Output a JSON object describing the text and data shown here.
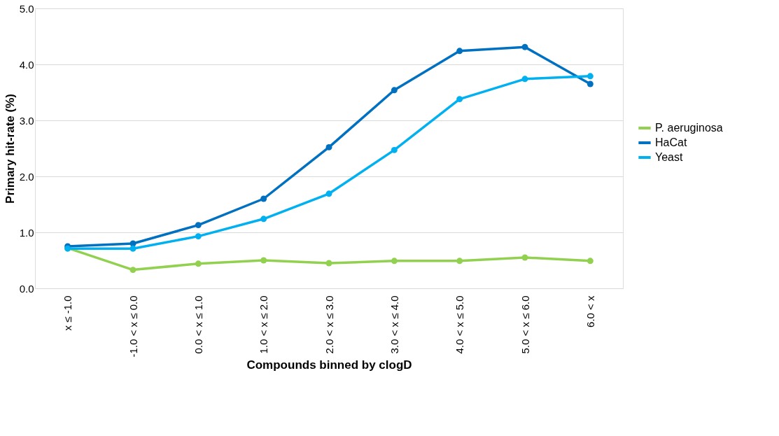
{
  "chart_data": {
    "type": "line",
    "xlabel": "Compounds binned by clogD",
    "ylabel": "Primary hit-rate (%)",
    "categories": [
      "x ≤ -1.0",
      "-1.0 < x ≤ 0.0",
      "0.0 < x ≤ 1.0",
      "1.0 < x ≤ 2.0",
      "2.0 < x ≤ 3.0",
      "3.0 < x ≤ 4.0",
      "4.0 < x ≤ 5.0",
      "5.0 < x ≤ 6.0",
      "6.0 < x"
    ],
    "series": [
      {
        "name": "P. aeruginosa",
        "color": "#92d050",
        "values": [
          0.72,
          0.33,
          0.44,
          0.5,
          0.45,
          0.49,
          0.49,
          0.55,
          0.49
        ]
      },
      {
        "name": "HaCat",
        "color": "#0070c0",
        "values": [
          0.75,
          0.8,
          1.13,
          1.6,
          2.52,
          3.54,
          4.24,
          4.31,
          3.65
        ]
      },
      {
        "name": "Yeast",
        "color": "#00b0f0",
        "values": [
          0.71,
          0.71,
          0.93,
          1.24,
          1.69,
          2.47,
          3.38,
          3.74,
          3.79
        ]
      }
    ],
    "ylim": [
      0,
      5
    ],
    "yticks": [
      {
        "value": 0,
        "label": "0.0"
      },
      {
        "value": 1,
        "label": "1.0"
      },
      {
        "value": 2,
        "label": "2.0"
      },
      {
        "value": 3,
        "label": "3.0"
      },
      {
        "value": 4,
        "label": "4.0"
      },
      {
        "value": 5,
        "label": "5.0"
      }
    ],
    "grid": "y",
    "legend": "right",
    "marker": "circle",
    "line_style": "solid"
  }
}
